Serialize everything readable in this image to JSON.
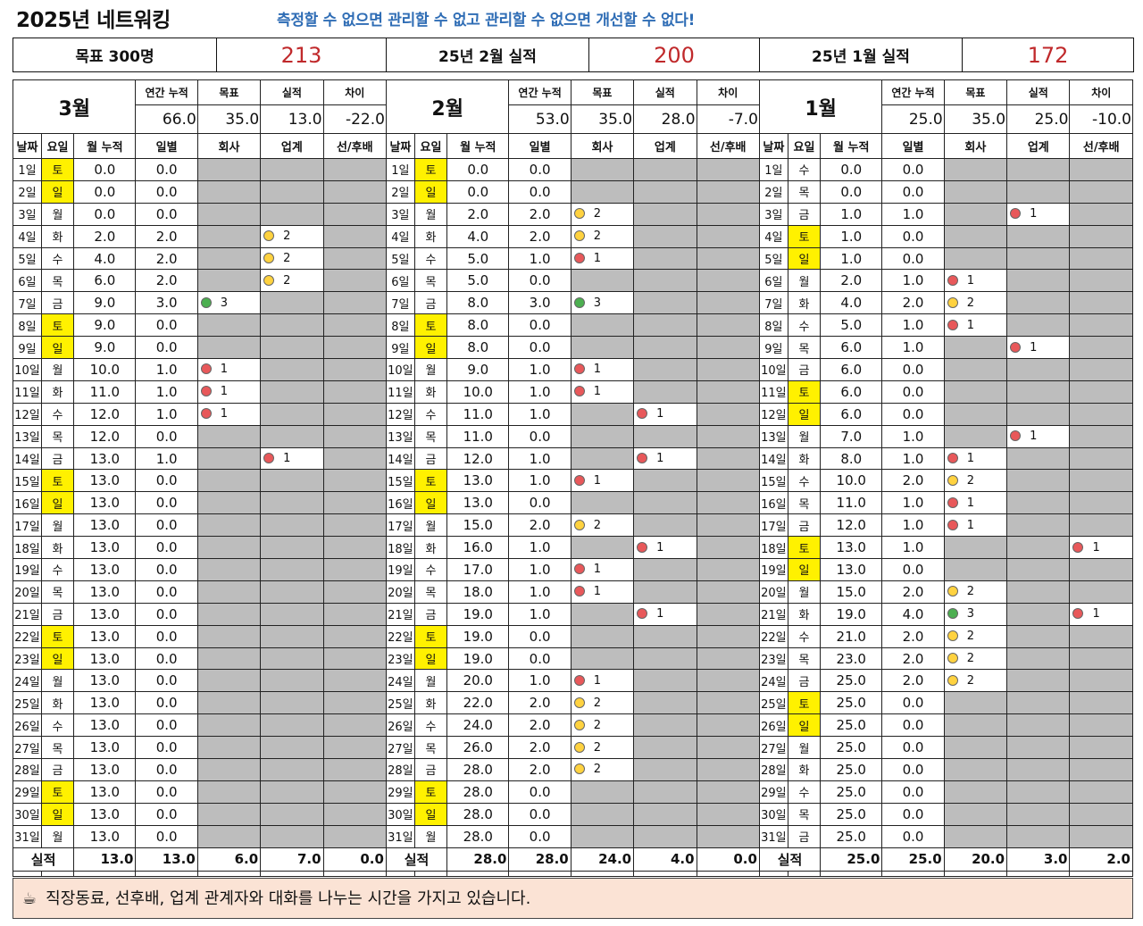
{
  "title": "2025년 네트워킹",
  "slogan": "측정할 수 없으면 관리할 수 없고 관리할 수 없으면 개선할 수 없다!",
  "summary": [
    {
      "label": "목표 300명",
      "value": "213"
    },
    {
      "label": "25년 2월 실적",
      "value": "200"
    },
    {
      "label": "25년 1월 실적",
      "value": "172"
    }
  ],
  "stat_labels": [
    "연간 누적",
    "목표",
    "실적",
    "차이"
  ],
  "col_headers": [
    "날짜",
    "요일",
    "월 누적",
    "일별",
    "회사",
    "업계",
    "선/후배"
  ],
  "total_label": "실적",
  "months": [
    {
      "name": "3월",
      "stats": [
        "66.0",
        "35.0",
        "13.0",
        "-22.0"
      ],
      "totals": [
        "13.0",
        "13.0",
        "6.0",
        "7.0",
        "0.0"
      ],
      "rows": [
        [
          "1일",
          "토",
          "0.0",
          "0.0",
          null,
          null,
          null
        ],
        [
          "2일",
          "일",
          "0.0",
          "0.0",
          null,
          null,
          null
        ],
        [
          "3일",
          "월",
          "0.0",
          "0.0",
          null,
          null,
          null
        ],
        [
          "4일",
          "화",
          "2.0",
          "2.0",
          null,
          2,
          null
        ],
        [
          "5일",
          "수",
          "4.0",
          "2.0",
          null,
          2,
          null
        ],
        [
          "6일",
          "목",
          "6.0",
          "2.0",
          null,
          2,
          null
        ],
        [
          "7일",
          "금",
          "9.0",
          "3.0",
          3,
          null,
          null
        ],
        [
          "8일",
          "토",
          "9.0",
          "0.0",
          null,
          null,
          null
        ],
        [
          "9일",
          "일",
          "9.0",
          "0.0",
          null,
          null,
          null
        ],
        [
          "10일",
          "월",
          "10.0",
          "1.0",
          1,
          null,
          null
        ],
        [
          "11일",
          "화",
          "11.0",
          "1.0",
          1,
          null,
          null
        ],
        [
          "12일",
          "수",
          "12.0",
          "1.0",
          1,
          null,
          null
        ],
        [
          "13일",
          "목",
          "12.0",
          "0.0",
          null,
          null,
          null
        ],
        [
          "14일",
          "금",
          "13.0",
          "1.0",
          null,
          1,
          null
        ],
        [
          "15일",
          "토",
          "13.0",
          "0.0",
          null,
          null,
          null
        ],
        [
          "16일",
          "일",
          "13.0",
          "0.0",
          null,
          null,
          null
        ],
        [
          "17일",
          "월",
          "13.0",
          "0.0",
          null,
          null,
          null
        ],
        [
          "18일",
          "화",
          "13.0",
          "0.0",
          null,
          null,
          null
        ],
        [
          "19일",
          "수",
          "13.0",
          "0.0",
          null,
          null,
          null
        ],
        [
          "20일",
          "목",
          "13.0",
          "0.0",
          null,
          null,
          null
        ],
        [
          "21일",
          "금",
          "13.0",
          "0.0",
          null,
          null,
          null
        ],
        [
          "22일",
          "토",
          "13.0",
          "0.0",
          null,
          null,
          null
        ],
        [
          "23일",
          "일",
          "13.0",
          "0.0",
          null,
          null,
          null
        ],
        [
          "24일",
          "월",
          "13.0",
          "0.0",
          null,
          null,
          null
        ],
        [
          "25일",
          "화",
          "13.0",
          "0.0",
          null,
          null,
          null
        ],
        [
          "26일",
          "수",
          "13.0",
          "0.0",
          null,
          null,
          null
        ],
        [
          "27일",
          "목",
          "13.0",
          "0.0",
          null,
          null,
          null
        ],
        [
          "28일",
          "금",
          "13.0",
          "0.0",
          null,
          null,
          null
        ],
        [
          "29일",
          "토",
          "13.0",
          "0.0",
          null,
          null,
          null
        ],
        [
          "30일",
          "일",
          "13.0",
          "0.0",
          null,
          null,
          null
        ],
        [
          "31일",
          "월",
          "13.0",
          "0.0",
          null,
          null,
          null
        ]
      ]
    },
    {
      "name": "2월",
      "stats": [
        "53.0",
        "35.0",
        "28.0",
        "-7.0"
      ],
      "totals": [
        "28.0",
        "28.0",
        "24.0",
        "4.0",
        "0.0"
      ],
      "rows": [
        [
          "1일",
          "토",
          "0.0",
          "0.0",
          null,
          null,
          null
        ],
        [
          "2일",
          "일",
          "0.0",
          "0.0",
          null,
          null,
          null
        ],
        [
          "3일",
          "월",
          "2.0",
          "2.0",
          2,
          null,
          null
        ],
        [
          "4일",
          "화",
          "4.0",
          "2.0",
          2,
          null,
          null
        ],
        [
          "5일",
          "수",
          "5.0",
          "1.0",
          1,
          null,
          null
        ],
        [
          "6일",
          "목",
          "5.0",
          "0.0",
          null,
          null,
          null
        ],
        [
          "7일",
          "금",
          "8.0",
          "3.0",
          3,
          null,
          null
        ],
        [
          "8일",
          "토",
          "8.0",
          "0.0",
          null,
          null,
          null
        ],
        [
          "9일",
          "일",
          "8.0",
          "0.0",
          null,
          null,
          null
        ],
        [
          "10일",
          "월",
          "9.0",
          "1.0",
          1,
          null,
          null
        ],
        [
          "11일",
          "화",
          "10.0",
          "1.0",
          1,
          null,
          null
        ],
        [
          "12일",
          "수",
          "11.0",
          "1.0",
          null,
          1,
          null
        ],
        [
          "13일",
          "목",
          "11.0",
          "0.0",
          null,
          null,
          null
        ],
        [
          "14일",
          "금",
          "12.0",
          "1.0",
          null,
          1,
          null
        ],
        [
          "15일",
          "토",
          "13.0",
          "1.0",
          1,
          null,
          null
        ],
        [
          "16일",
          "일",
          "13.0",
          "0.0",
          null,
          null,
          null
        ],
        [
          "17일",
          "월",
          "15.0",
          "2.0",
          2,
          null,
          null
        ],
        [
          "18일",
          "화",
          "16.0",
          "1.0",
          null,
          1,
          null
        ],
        [
          "19일",
          "수",
          "17.0",
          "1.0",
          1,
          null,
          null
        ],
        [
          "20일",
          "목",
          "18.0",
          "1.0",
          1,
          null,
          null
        ],
        [
          "21일",
          "금",
          "19.0",
          "1.0",
          null,
          1,
          null
        ],
        [
          "22일",
          "토",
          "19.0",
          "0.0",
          null,
          null,
          null
        ],
        [
          "23일",
          "일",
          "19.0",
          "0.0",
          null,
          null,
          null
        ],
        [
          "24일",
          "월",
          "20.0",
          "1.0",
          1,
          null,
          null
        ],
        [
          "25일",
          "화",
          "22.0",
          "2.0",
          2,
          null,
          null
        ],
        [
          "26일",
          "수",
          "24.0",
          "2.0",
          2,
          null,
          null
        ],
        [
          "27일",
          "목",
          "26.0",
          "2.0",
          2,
          null,
          null
        ],
        [
          "28일",
          "금",
          "28.0",
          "2.0",
          2,
          null,
          null
        ],
        [
          "29일",
          "토",
          "28.0",
          "0.0",
          null,
          null,
          null
        ],
        [
          "30일",
          "일",
          "28.0",
          "0.0",
          null,
          null,
          null
        ],
        [
          "31일",
          "월",
          "28.0",
          "0.0",
          null,
          null,
          null
        ]
      ]
    },
    {
      "name": "1월",
      "stats": [
        "25.0",
        "35.0",
        "25.0",
        "-10.0"
      ],
      "totals": [
        "25.0",
        "25.0",
        "20.0",
        "3.0",
        "2.0"
      ],
      "rows": [
        [
          "1일",
          "수",
          "0.0",
          "0.0",
          null,
          null,
          null
        ],
        [
          "2일",
          "목",
          "0.0",
          "0.0",
          null,
          null,
          null
        ],
        [
          "3일",
          "금",
          "1.0",
          "1.0",
          null,
          1,
          null
        ],
        [
          "4일",
          "토",
          "1.0",
          "0.0",
          null,
          null,
          null
        ],
        [
          "5일",
          "일",
          "1.0",
          "0.0",
          null,
          null,
          null
        ],
        [
          "6일",
          "월",
          "2.0",
          "1.0",
          1,
          null,
          null
        ],
        [
          "7일",
          "화",
          "4.0",
          "2.0",
          2,
          null,
          null
        ],
        [
          "8일",
          "수",
          "5.0",
          "1.0",
          1,
          null,
          null
        ],
        [
          "9일",
          "목",
          "6.0",
          "1.0",
          null,
          1,
          null
        ],
        [
          "10일",
          "금",
          "6.0",
          "0.0",
          null,
          null,
          null
        ],
        [
          "11일",
          "토",
          "6.0",
          "0.0",
          null,
          null,
          null
        ],
        [
          "12일",
          "일",
          "6.0",
          "0.0",
          null,
          null,
          null
        ],
        [
          "13일",
          "월",
          "7.0",
          "1.0",
          null,
          1,
          null
        ],
        [
          "14일",
          "화",
          "8.0",
          "1.0",
          1,
          null,
          null
        ],
        [
          "15일",
          "수",
          "10.0",
          "2.0",
          2,
          null,
          null
        ],
        [
          "16일",
          "목",
          "11.0",
          "1.0",
          1,
          null,
          null
        ],
        [
          "17일",
          "금",
          "12.0",
          "1.0",
          1,
          null,
          null
        ],
        [
          "18일",
          "토",
          "13.0",
          "1.0",
          null,
          null,
          1
        ],
        [
          "19일",
          "일",
          "13.0",
          "0.0",
          null,
          null,
          null
        ],
        [
          "20일",
          "월",
          "15.0",
          "2.0",
          2,
          null,
          null
        ],
        [
          "21일",
          "화",
          "19.0",
          "4.0",
          3,
          null,
          1
        ],
        [
          "22일",
          "수",
          "21.0",
          "2.0",
          2,
          null,
          null
        ],
        [
          "23일",
          "목",
          "23.0",
          "2.0",
          2,
          null,
          null
        ],
        [
          "24일",
          "금",
          "25.0",
          "2.0",
          2,
          null,
          null
        ],
        [
          "25일",
          "토",
          "25.0",
          "0.0",
          null,
          null,
          null
        ],
        [
          "26일",
          "일",
          "25.0",
          "0.0",
          null,
          null,
          null
        ],
        [
          "27일",
          "월",
          "25.0",
          "0.0",
          null,
          null,
          null
        ],
        [
          "28일",
          "화",
          "25.0",
          "0.0",
          null,
          null,
          null
        ],
        [
          "29일",
          "수",
          "25.0",
          "0.0",
          null,
          null,
          null
        ],
        [
          "30일",
          "목",
          "25.0",
          "0.0",
          null,
          null,
          null
        ],
        [
          "31일",
          "금",
          "25.0",
          "0.0",
          null,
          null,
          null
        ]
      ]
    }
  ],
  "note": {
    "icon": "coffee-cup-icon",
    "text": "직장동료, 선후배, 업계 관계자와 대화를 나누는 시간을 가지고 있습니다."
  },
  "colors": {
    "weekend": "#fff100",
    "empty": "#bdbdbd",
    "red_value": "#c0292b",
    "slogan": "#2f6db5",
    "dot_1": "#e8585a",
    "dot_2": "#ffd23f",
    "dot_3": "#4caf50",
    "note_bg": "#fbe3d5"
  }
}
